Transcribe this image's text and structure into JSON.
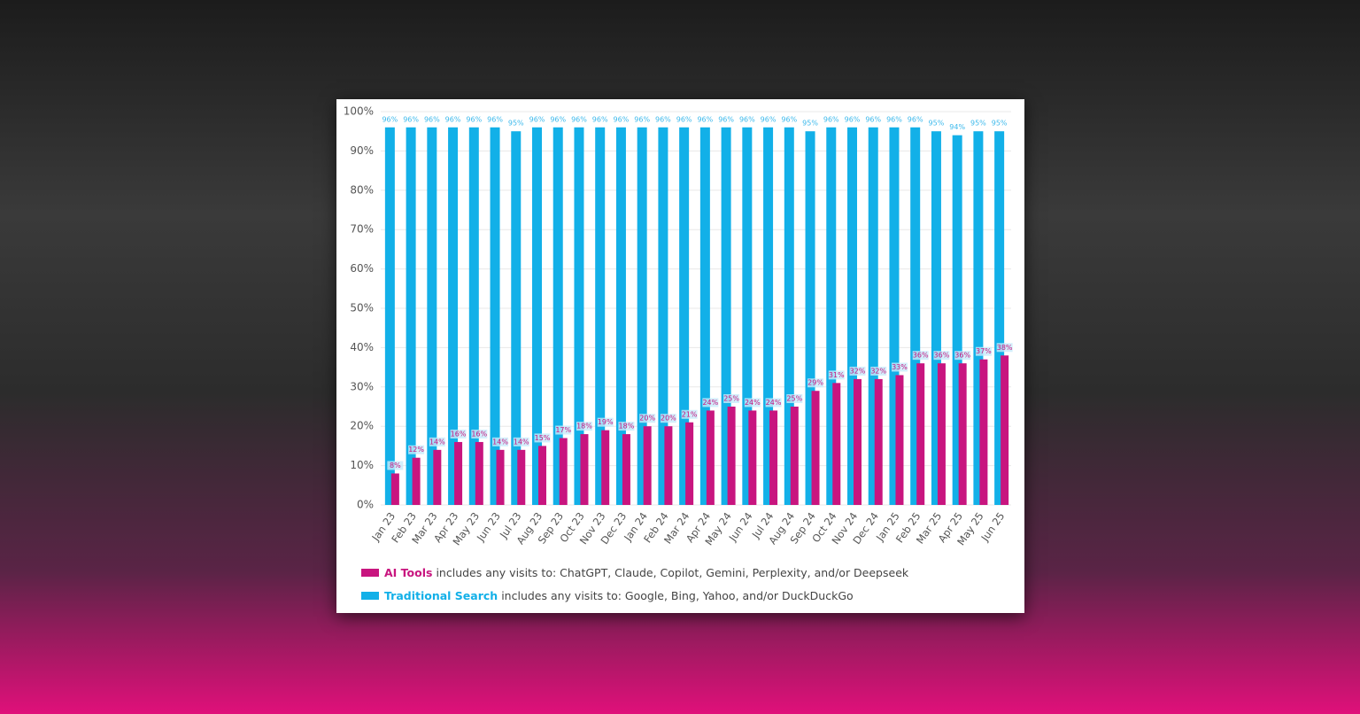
{
  "chart_data": {
    "type": "overlap-bar",
    "categories": [
      "Jan 23",
      "Feb 23",
      "Mar 23",
      "Apr 23",
      "May 23",
      "Jun 23",
      "Jul 23",
      "Aug 23",
      "Sep 23",
      "Oct 23",
      "Nov 23",
      "Dec 23",
      "Jan 24",
      "Feb 24",
      "Mar 24",
      "Apr 24",
      "May 24",
      "Jun 24",
      "Jul 24",
      "Aug 24",
      "Sep 24",
      "Oct 24",
      "Nov 24",
      "Dec 24",
      "Jan 25",
      "Feb 25",
      "Mar 25",
      "Apr 25",
      "May 25",
      "Jun 25"
    ],
    "series": [
      {
        "name": "Traditional Search",
        "description": "includes any visits to: Google, Bing, Yahoo, and/or DuckDuckGo",
        "color": "#12b0e8",
        "values": [
          96,
          96,
          96,
          96,
          96,
          96,
          95,
          96,
          96,
          96,
          96,
          96,
          96,
          96,
          96,
          96,
          96,
          96,
          96,
          96,
          95,
          96,
          96,
          96,
          96,
          96,
          95,
          94,
          95,
          95
        ],
        "value_labels": [
          "96%",
          "96%",
          "96%",
          "96%",
          "96%",
          "96%",
          "95%",
          "96%",
          "96%",
          "96%",
          "96%",
          "96%",
          "96%",
          "96%",
          "96%",
          "96%",
          "96%",
          "96%",
          "96%",
          "96%",
          "95%",
          "96%",
          "96%",
          "96%",
          "96%",
          "96%",
          "95%",
          "94%",
          "95%",
          "95%"
        ]
      },
      {
        "name": "AI Tools",
        "description": "includes any visits to: ChatGPT, Claude, Copilot, Gemini, Perplexity, and/or Deepseek",
        "color": "#c8157f",
        "values": [
          8,
          12,
          14,
          16,
          16,
          14,
          14,
          15,
          17,
          18,
          19,
          18,
          20,
          20,
          21,
          24,
          25,
          24,
          24,
          25,
          29,
          31,
          32,
          32,
          33,
          36,
          36,
          36,
          37,
          38
        ],
        "value_labels": [
          "8%",
          "12%",
          "14%",
          "16%",
          "16%",
          "14%",
          "14%",
          "15%",
          "17%",
          "18%",
          "19%",
          "18%",
          "20%",
          "20%",
          "21%",
          "24%",
          "25%",
          "24%",
          "24%",
          "25%",
          "29%",
          "31%",
          "32%",
          "32%",
          "33%",
          "36%",
          "36%",
          "36%",
          "37%",
          "38%"
        ]
      }
    ],
    "ylim": [
      0,
      100
    ],
    "yticks": [
      {
        "value": 0,
        "label": "0%"
      },
      {
        "value": 10,
        "label": "10%"
      },
      {
        "value": 20,
        "label": "20%"
      },
      {
        "value": 30,
        "label": "30%"
      },
      {
        "value": 40,
        "label": "40%"
      },
      {
        "value": 50,
        "label": "50%"
      },
      {
        "value": 60,
        "label": "60%"
      },
      {
        "value": 70,
        "label": "70%"
      },
      {
        "value": 80,
        "label": "80%"
      },
      {
        "value": 90,
        "label": "90%"
      },
      {
        "value": 100,
        "label": "100%"
      }
    ],
    "grid": true
  }
}
